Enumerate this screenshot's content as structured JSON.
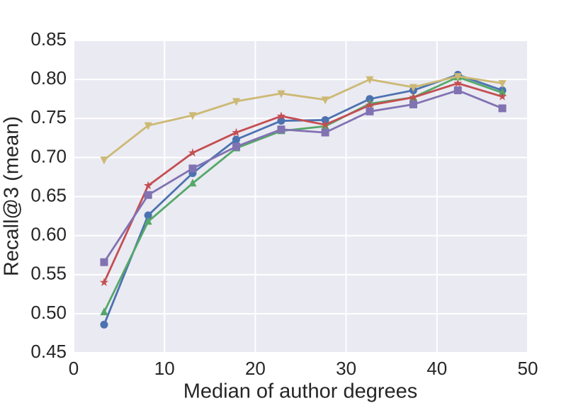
{
  "chart_data": {
    "type": "line",
    "xlabel": "Median of author degrees",
    "ylabel": "Recall@3 (mean)",
    "x": [
      3.35,
      8.2,
      13.1,
      17.9,
      22.85,
      27.7,
      32.6,
      37.4,
      42.3,
      47.2
    ],
    "series": [
      {
        "color": "#4c72b0",
        "marker": "circle",
        "values": [
          0.486,
          0.626,
          0.68,
          0.723,
          0.747,
          0.748,
          0.775,
          0.786,
          0.806,
          0.786
        ]
      },
      {
        "color": "#55a868",
        "marker": "triangle-up",
        "values": [
          0.502,
          0.618,
          0.667,
          0.712,
          0.734,
          0.74,
          0.769,
          0.777,
          0.803,
          0.783
        ]
      },
      {
        "color": "#c44e52",
        "marker": "star",
        "values": [
          0.54,
          0.664,
          0.706,
          0.732,
          0.753,
          0.742,
          0.767,
          0.777,
          0.795,
          0.778
        ]
      },
      {
        "color": "#8172b2",
        "marker": "square",
        "values": [
          0.566,
          0.652,
          0.686,
          0.714,
          0.736,
          0.732,
          0.759,
          0.768,
          0.786,
          0.763
        ]
      },
      {
        "color": "#ccb974",
        "marker": "triangle-down",
        "values": [
          0.697,
          0.741,
          0.754,
          0.772,
          0.782,
          0.774,
          0.8,
          0.79,
          0.804,
          0.795
        ]
      }
    ],
    "xlim": [
      0,
      50
    ],
    "xticks": [
      0,
      10,
      20,
      30,
      40,
      50
    ],
    "ylim": [
      0.45,
      0.85
    ],
    "yticks": [
      0.45,
      {
        "value": 0.5,
        "label": "0.50"
      },
      0.55,
      {
        "value": 0.6,
        "label": "0.60"
      },
      0.65,
      {
        "value": 0.7,
        "label": "0.70"
      },
      0.75,
      {
        "value": 0.8,
        "label": "0.80"
      },
      0.85
    ],
    "grid": true,
    "background": "#eaeaf2"
  }
}
